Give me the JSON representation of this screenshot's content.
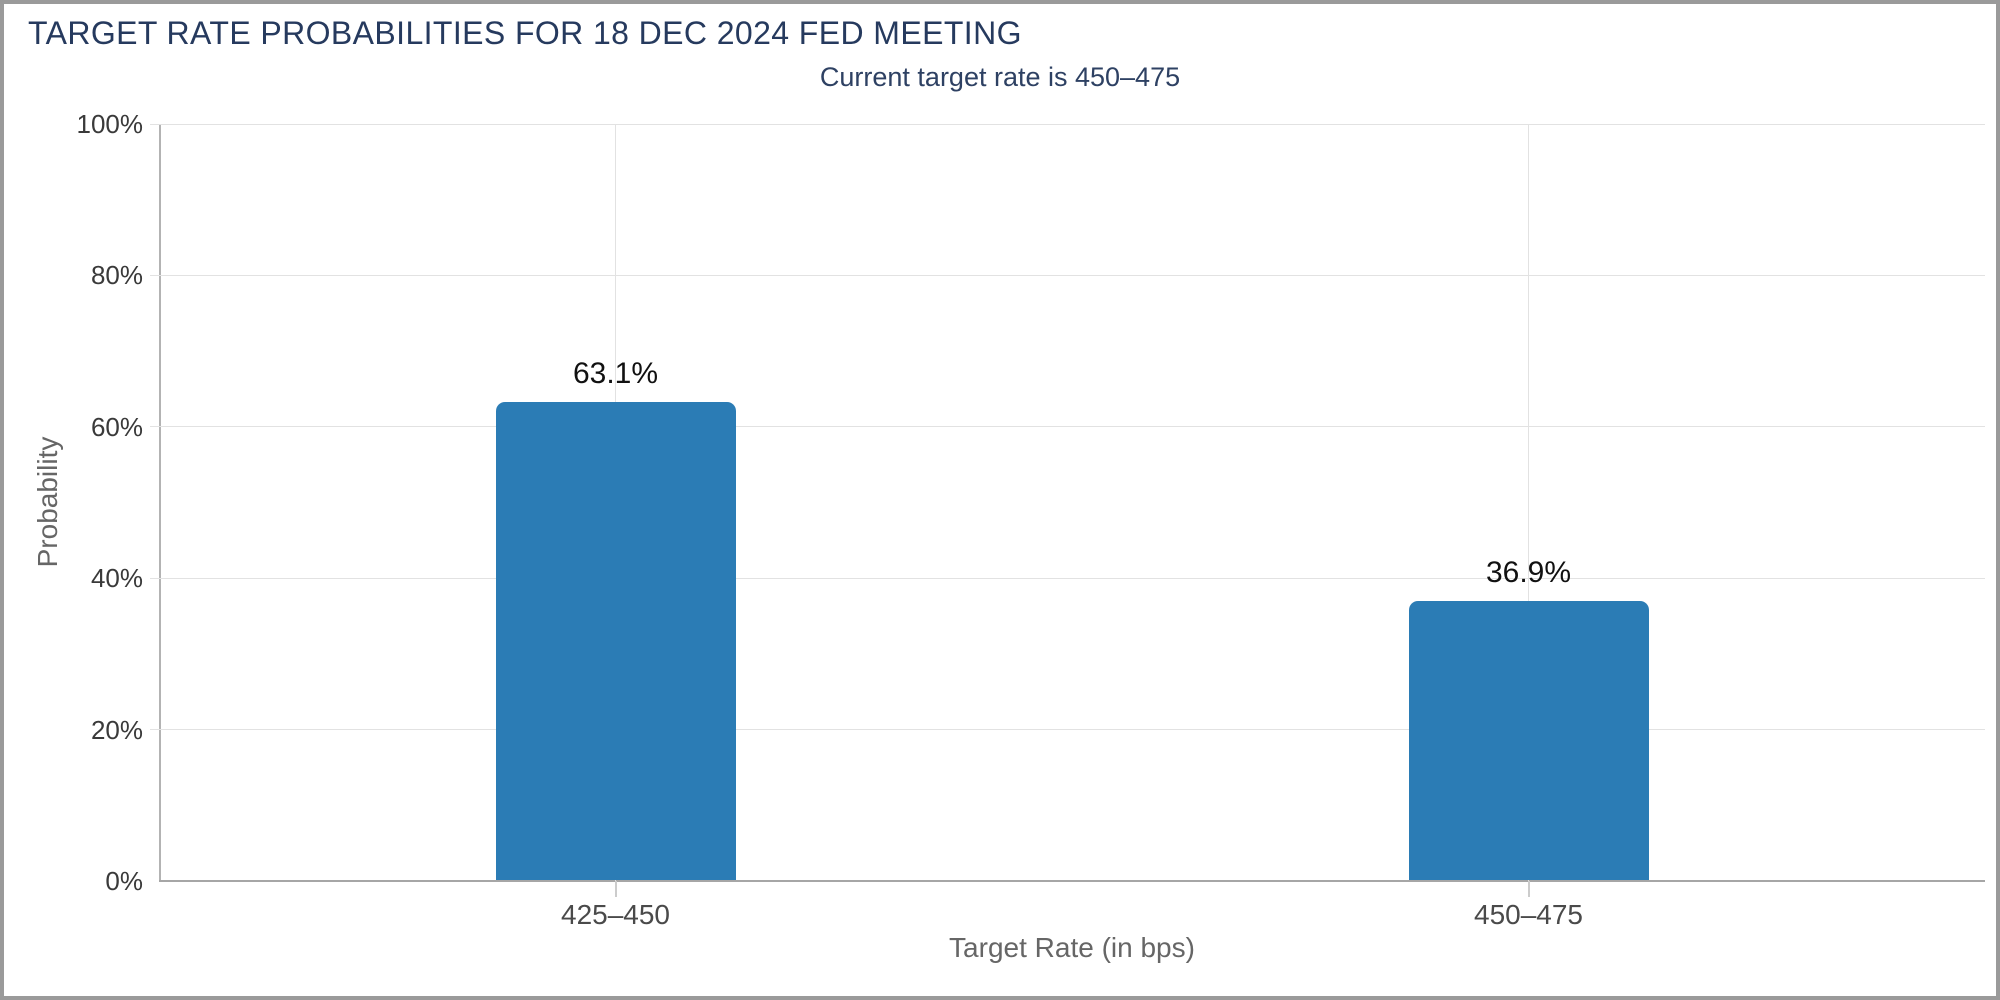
{
  "frame": {
    "background": "#ffffff",
    "border_color": "#9a9a9a"
  },
  "header": {
    "title": "TARGET RATE PROBABILITIES FOR 18 DEC 2024 FED MEETING",
    "subtitle": "Current target rate is 450–475"
  },
  "colors": {
    "title_text": "#263a5e",
    "subtitle_text": "#2e4163",
    "bar_fill": "#2b7cb5",
    "grid_line": "#e2e2e2",
    "y_axis_line": "#b3b3b3",
    "x_axis_line": "#a6a6a6",
    "tick_label": "#3a3a3a",
    "category_label": "#4a4a4a",
    "axis_title": "#666666",
    "value_label": "#111111"
  },
  "chart_data": {
    "type": "bar",
    "title": "TARGET RATE PROBABILITIES FOR 18 DEC 2024 FED MEETING",
    "subtitle": "Current target rate is 450–475",
    "categories": [
      "425–450",
      "450–475"
    ],
    "values": [
      63.1,
      36.9
    ],
    "value_labels": [
      "63.1%",
      "36.9%"
    ],
    "xlabel": "Target Rate (in bps)",
    "ylabel": "Probability",
    "ylim": [
      0,
      100
    ],
    "yticks": [
      0,
      20,
      40,
      60,
      80,
      100
    ],
    "ytick_labels": [
      "0%",
      "20%",
      "40%",
      "60%",
      "80%",
      "100%"
    ],
    "grid": "on",
    "legend": "none"
  }
}
